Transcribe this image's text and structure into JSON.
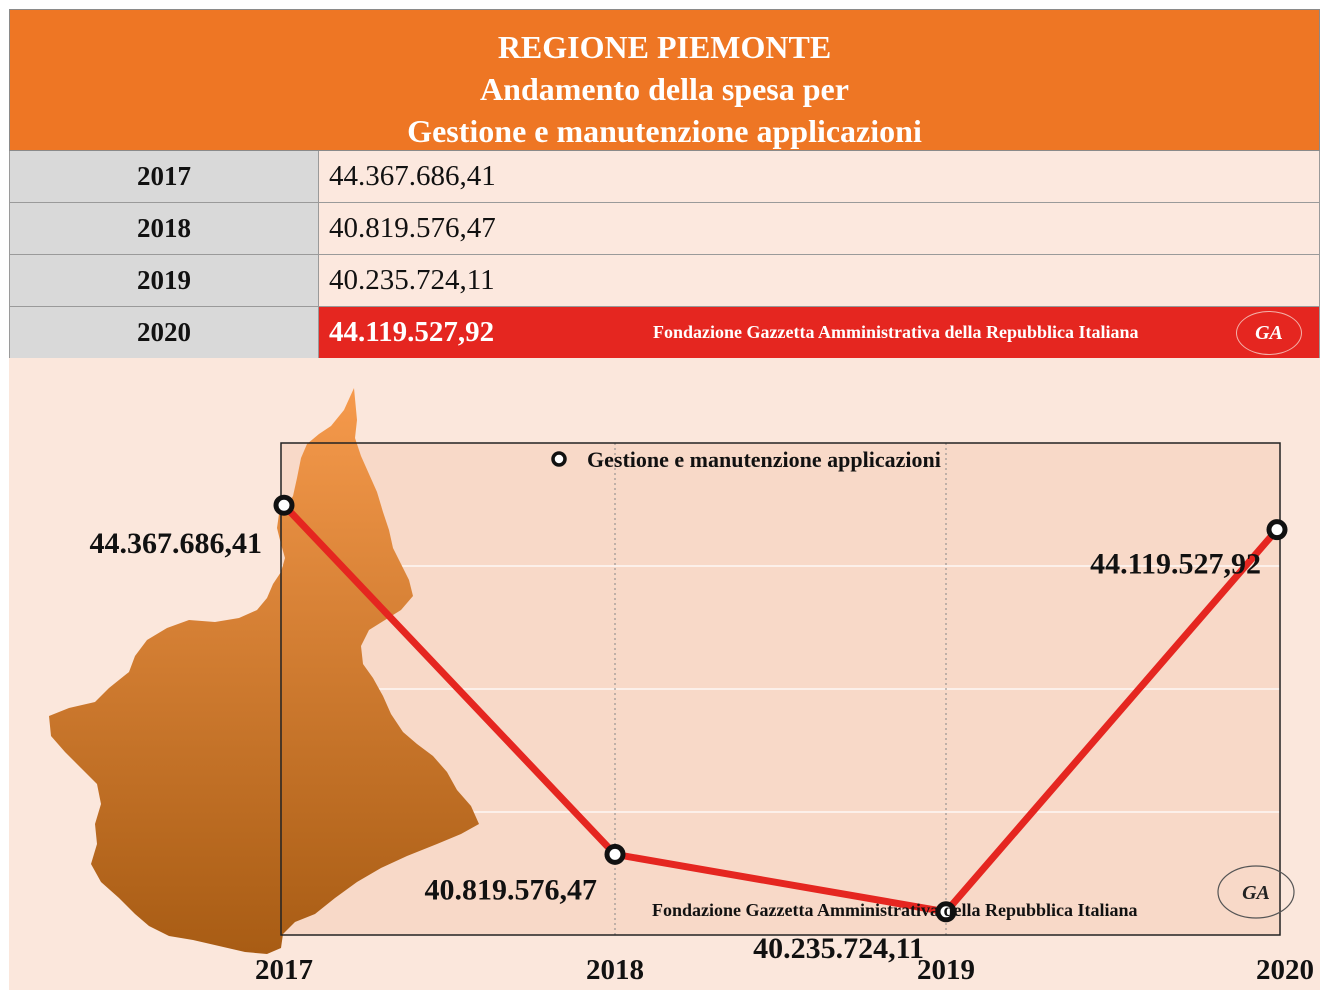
{
  "header": {
    "line1": "REGIONE PIEMONTE",
    "line2": "Andamento della spesa per",
    "line3": "Gestione e manutenzione applicazioni"
  },
  "table": {
    "rows": [
      {
        "year": "2017",
        "value": "44.367.686,41"
      },
      {
        "year": "2018",
        "value": "40.819.576,47"
      },
      {
        "year": "2019",
        "value": "40.235.724,11"
      },
      {
        "year": "2020",
        "value": "44.119.527,92"
      }
    ],
    "foundation": "Fondazione Gazzetta Amministrativa della Repubblica Italiana",
    "logo_text": "GA"
  },
  "colors": {
    "header_bg": "#ee7624",
    "year_cell_bg": "#d9d9d9",
    "value_cell_bg": "#fce8de",
    "highlight_bg": "#e52620",
    "chart_bg": "#fbe7dc",
    "plot_bg": "#f8d9c8",
    "line": "#e52620",
    "region_top": "#f69a4c",
    "region_bottom": "#a85c14"
  },
  "chart_data": {
    "type": "line",
    "title": "",
    "xlabel": "",
    "ylabel": "",
    "categories": [
      "2017",
      "2018",
      "2019",
      "2020"
    ],
    "series": [
      {
        "name": "Gestione e manutenzione applicazioni",
        "values": [
          44367686.41,
          40819576.47,
          40235724.11,
          44119527.92
        ],
        "labels": [
          "44.367.686,41",
          "40.819.576,47",
          "40.235.724,11",
          "44.119.527,92"
        ]
      }
    ],
    "ylim": [
      40000000,
      45000000
    ],
    "grid": true,
    "legend": "top-center",
    "watermark": "Fondazione Gazzetta Amministrativa della Repubblica Italiana"
  }
}
